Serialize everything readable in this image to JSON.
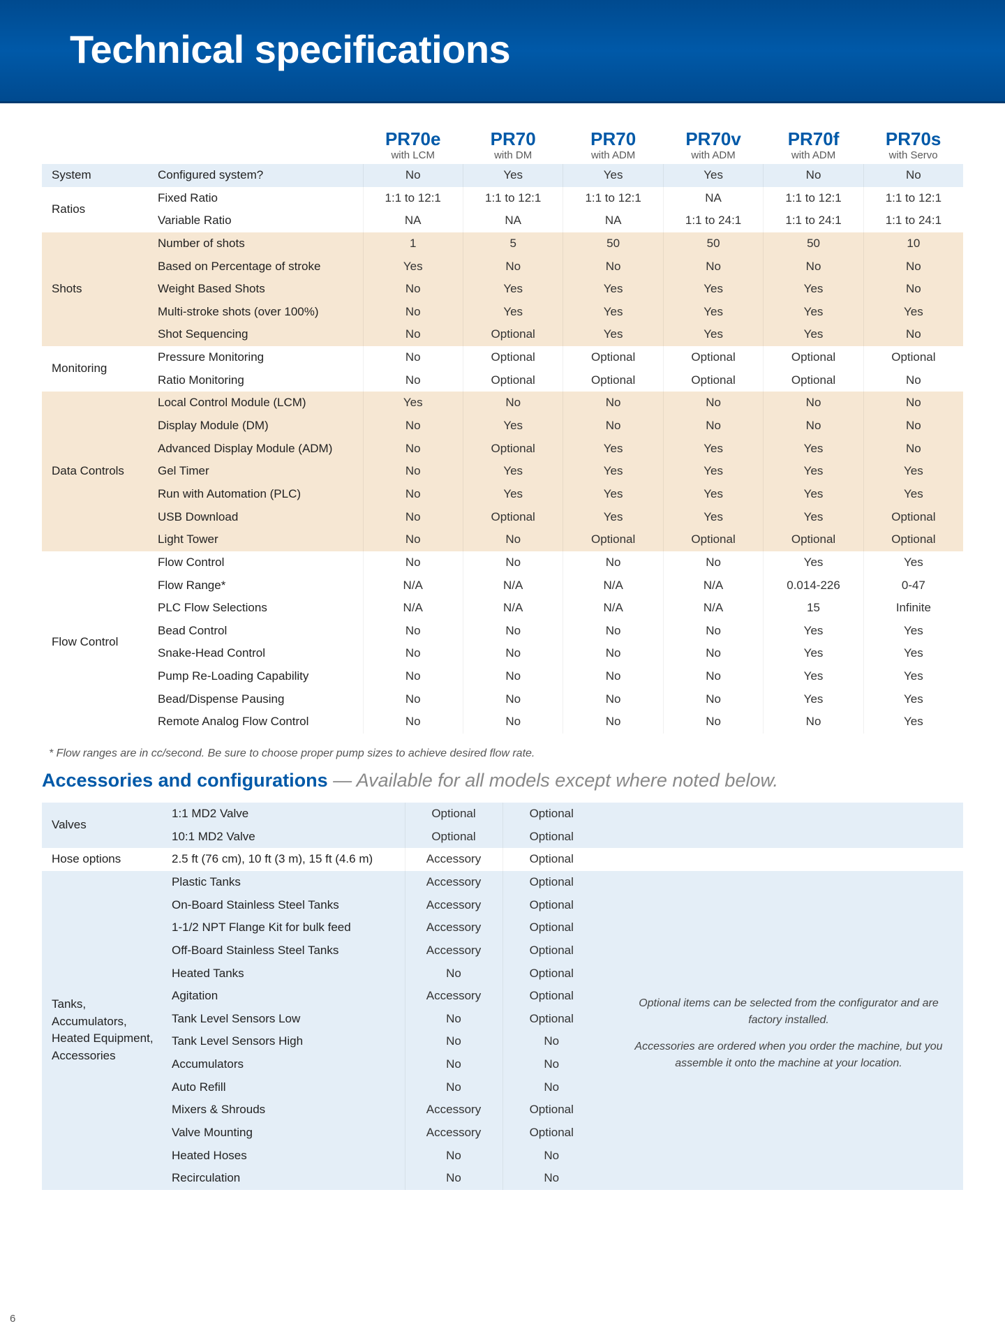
{
  "page_number": "6",
  "colors": {
    "header_bg": "#004a8f",
    "header_text": "#ffffff",
    "accent": "#0059a8",
    "band_beige": "#f6e7d3",
    "band_blue": "#e4eef7"
  },
  "header": {
    "title": "Technical specifications"
  },
  "models": [
    {
      "name": "PR70e",
      "sub": "with LCM"
    },
    {
      "name": "PR70",
      "sub": "with DM"
    },
    {
      "name": "PR70",
      "sub": "with ADM"
    },
    {
      "name": "PR70v",
      "sub": "with ADM"
    },
    {
      "name": "PR70f",
      "sub": "with ADM"
    },
    {
      "name": "PR70s",
      "sub": "with Servo"
    }
  ],
  "table1": [
    {
      "band": "blue",
      "category": "System",
      "rows": [
        {
          "label": "Configured system?",
          "vals": [
            "No",
            "Yes",
            "Yes",
            "Yes",
            "No",
            "No"
          ]
        }
      ]
    },
    {
      "band": "none",
      "category": "Ratios",
      "rows": [
        {
          "label": "Fixed Ratio",
          "vals": [
            "1:1 to 12:1",
            "1:1 to 12:1",
            "1:1 to 12:1",
            "NA",
            "1:1 to 12:1",
            "1:1 to 12:1"
          ]
        },
        {
          "label": "Variable Ratio",
          "vals": [
            "NA",
            "NA",
            "NA",
            "1:1 to 24:1",
            "1:1 to 24:1",
            "1:1 to 24:1"
          ]
        }
      ]
    },
    {
      "band": "beige",
      "category": "Shots",
      "rows": [
        {
          "label": "Number of shots",
          "vals": [
            "1",
            "5",
            "50",
            "50",
            "50",
            "10"
          ]
        },
        {
          "label": "Based on Percentage of stroke",
          "vals": [
            "Yes",
            "No",
            "No",
            "No",
            "No",
            "No"
          ]
        },
        {
          "label": "Weight Based Shots",
          "vals": [
            "No",
            "Yes",
            "Yes",
            "Yes",
            "Yes",
            "No"
          ]
        },
        {
          "label": "Multi-stroke shots (over 100%)",
          "vals": [
            "No",
            "Yes",
            "Yes",
            "Yes",
            "Yes",
            "Yes"
          ]
        },
        {
          "label": "Shot Sequencing",
          "vals": [
            "No",
            "Optional",
            "Yes",
            "Yes",
            "Yes",
            "No"
          ]
        }
      ]
    },
    {
      "band": "none",
      "category": "Monitoring",
      "rows": [
        {
          "label": "Pressure Monitoring",
          "vals": [
            "No",
            "Optional",
            "Optional",
            "Optional",
            "Optional",
            "Optional"
          ]
        },
        {
          "label": "Ratio Monitoring",
          "vals": [
            "No",
            "Optional",
            "Optional",
            "Optional",
            "Optional",
            "No"
          ]
        }
      ]
    },
    {
      "band": "beige",
      "category": "Data Controls",
      "rows": [
        {
          "label": "Local Control Module (LCM)",
          "vals": [
            "Yes",
            "No",
            "No",
            "No",
            "No",
            "No"
          ]
        },
        {
          "label": "Display Module (DM)",
          "vals": [
            "No",
            "Yes",
            "No",
            "No",
            "No",
            "No"
          ]
        },
        {
          "label": "Advanced Display Module (ADM)",
          "vals": [
            "No",
            "Optional",
            "Yes",
            "Yes",
            "Yes",
            "No"
          ]
        },
        {
          "label": "Gel Timer",
          "vals": [
            "No",
            "Yes",
            "Yes",
            "Yes",
            "Yes",
            "Yes"
          ]
        },
        {
          "label": "Run with Automation (PLC)",
          "vals": [
            "No",
            "Yes",
            "Yes",
            "Yes",
            "Yes",
            "Yes"
          ]
        },
        {
          "label": "USB Download",
          "vals": [
            "No",
            "Optional",
            "Yes",
            "Yes",
            "Yes",
            "Optional"
          ]
        },
        {
          "label": "Light Tower",
          "vals": [
            "No",
            "No",
            "Optional",
            "Optional",
            "Optional",
            "Optional"
          ]
        }
      ]
    },
    {
      "band": "none",
      "category": "Flow Control",
      "rows": [
        {
          "label": "Flow Control",
          "vals": [
            "No",
            "No",
            "No",
            "No",
            "Yes",
            "Yes"
          ]
        },
        {
          "label": "Flow Range*",
          "vals": [
            "N/A",
            "N/A",
            "N/A",
            "N/A",
            "0.014-226",
            "0-47"
          ]
        },
        {
          "label": "PLC Flow Selections",
          "vals": [
            "N/A",
            "N/A",
            "N/A",
            "N/A",
            "15",
            "Infinite"
          ]
        },
        {
          "label": "Bead Control",
          "vals": [
            "No",
            "No",
            "No",
            "No",
            "Yes",
            "Yes"
          ]
        },
        {
          "label": "Snake-Head Control",
          "vals": [
            "No",
            "No",
            "No",
            "No",
            "Yes",
            "Yes"
          ]
        },
        {
          "label": "Pump Re-Loading Capability",
          "vals": [
            "No",
            "No",
            "No",
            "No",
            "Yes",
            "Yes"
          ]
        },
        {
          "label": "Bead/Dispense Pausing",
          "vals": [
            "No",
            "No",
            "No",
            "No",
            "Yes",
            "Yes"
          ]
        },
        {
          "label": "Remote Analog Flow Control",
          "vals": [
            "No",
            "No",
            "No",
            "No",
            "No",
            "Yes"
          ]
        }
      ]
    }
  ],
  "footnote": "* Flow ranges are in cc/second. Be sure to choose proper pump sizes to achieve desired flow rate.",
  "subhead": {
    "blue": "Accessories and configurations",
    "rest": " — Available for all models except where noted below."
  },
  "table2_headers": [
    "",
    ""
  ],
  "table2": [
    {
      "band": "blue",
      "category": "Valves",
      "rows": [
        {
          "label": "1:1 MD2 Valve",
          "vals": [
            "Optional",
            "Optional"
          ]
        },
        {
          "label": "10:1 MD2 Valve",
          "vals": [
            "Optional",
            "Optional"
          ]
        }
      ]
    },
    {
      "band": "none",
      "category": "Hose options",
      "rows": [
        {
          "label": "2.5 ft (76 cm), 10 ft (3 m), 15 ft (4.6 m)",
          "vals": [
            "Accessory",
            "Optional"
          ]
        }
      ]
    },
    {
      "band": "blue",
      "category": "Tanks, Accumulators, Heated Equipment, Accessories",
      "rows": [
        {
          "label": "Plastic Tanks",
          "vals": [
            "Accessory",
            "Optional"
          ]
        },
        {
          "label": "On-Board Stainless Steel Tanks",
          "vals": [
            "Accessory",
            "Optional"
          ]
        },
        {
          "label": "1-1/2 NPT Flange Kit for bulk feed",
          "vals": [
            "Accessory",
            "Optional"
          ]
        },
        {
          "label": "Off-Board Stainless Steel Tanks",
          "vals": [
            "Accessory",
            "Optional"
          ]
        },
        {
          "label": "Heated Tanks",
          "vals": [
            "No",
            "Optional"
          ]
        },
        {
          "label": "Agitation",
          "vals": [
            "Accessory",
            "Optional"
          ]
        },
        {
          "label": "Tank Level Sensors Low",
          "vals": [
            "No",
            "Optional"
          ]
        },
        {
          "label": "Tank Level Sensors High",
          "vals": [
            "No",
            "No"
          ]
        },
        {
          "label": "Accumulators",
          "vals": [
            "No",
            "No"
          ]
        },
        {
          "label": "Auto Refill",
          "vals": [
            "No",
            "No"
          ]
        },
        {
          "label": "Mixers & Shrouds",
          "vals": [
            "Accessory",
            "Optional"
          ]
        },
        {
          "label": "Valve Mounting",
          "vals": [
            "Accessory",
            "Optional"
          ]
        },
        {
          "label": "Heated Hoses",
          "vals": [
            "No",
            "No"
          ]
        },
        {
          "label": "Recirculation",
          "vals": [
            "No",
            "No"
          ]
        }
      ]
    }
  ],
  "note_box": [
    "Optional items can be selected from the configurator and are factory installed.",
    "Accessories are ordered when you order the machine, but you assemble it onto the machine at your location."
  ]
}
